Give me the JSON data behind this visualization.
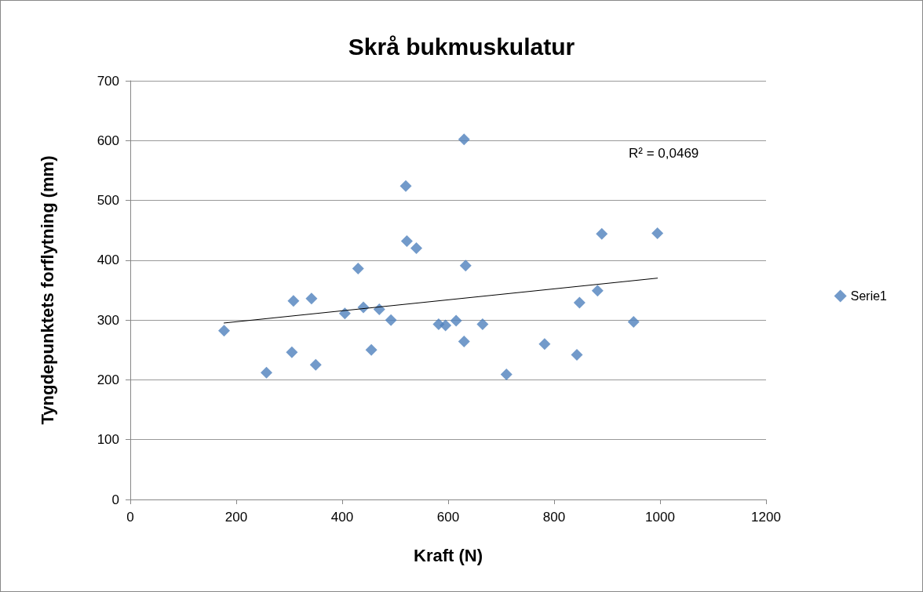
{
  "chart_data": {
    "type": "scatter",
    "title": "Skrå bukmuskulatur",
    "xlabel": "Kraft (N)",
    "ylabel": "Tyngdepunktets forflytning (mm)",
    "x": [
      177,
      257,
      305,
      308,
      342,
      350,
      405,
      430,
      440,
      455,
      470,
      492,
      520,
      522,
      540,
      582,
      595,
      615,
      630,
      630,
      633,
      665,
      710,
      782,
      843,
      848,
      882,
      890,
      950,
      995
    ],
    "series": [
      {
        "name": "Serie1",
        "color": "#4f81bd",
        "values": [
          282,
          212,
          246,
          332,
          336,
          225,
          311,
          386,
          321,
          250,
          318,
          300,
          524,
          432,
          420,
          293,
          291,
          299,
          602,
          264,
          391,
          293,
          209,
          260,
          242,
          329,
          349,
          444,
          297,
          445
        ]
      },
      {
        "type": "line",
        "color": "#000000",
        "x": [
          177,
          995
        ],
        "values": [
          295,
          370
        ],
        "marker": "none"
      }
    ],
    "annotations": [
      "R² = 0,0469"
    ],
    "xlim": [
      0,
      1200
    ],
    "xticks": [
      0,
      200,
      400,
      600,
      800,
      1000,
      1200
    ],
    "ylim": [
      0,
      700
    ],
    "yticks": [
      0,
      100,
      200,
      300,
      400,
      500,
      600,
      700
    ],
    "grid": "y",
    "legend": "right",
    "marker": "diamond"
  }
}
